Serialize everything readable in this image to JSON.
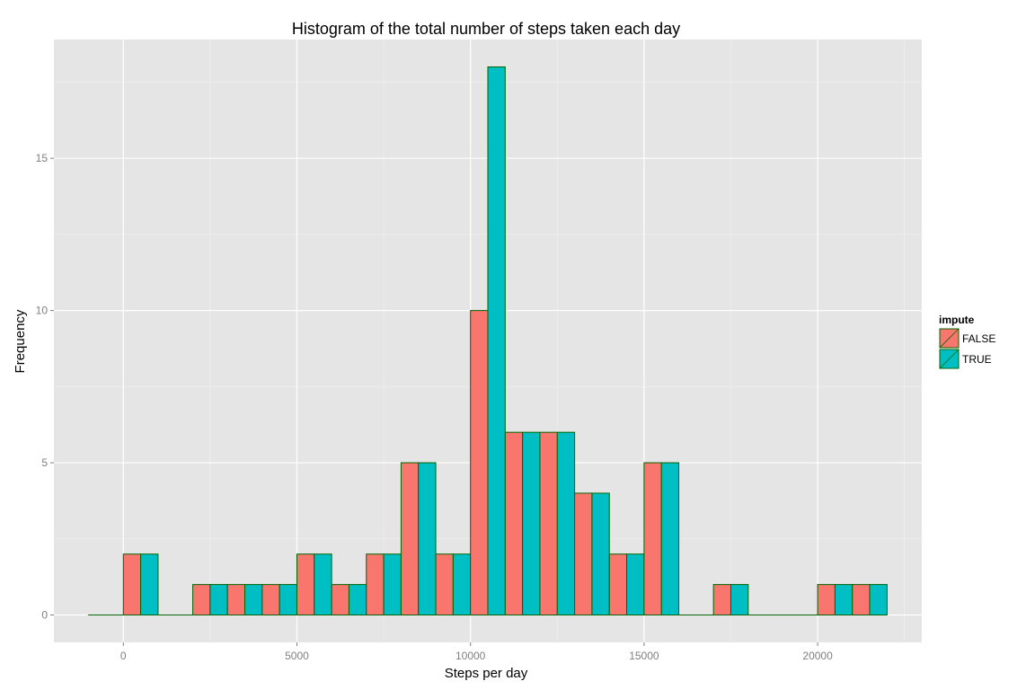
{
  "chart_data": {
    "type": "bar",
    "title": "Histogram of the total number of steps taken each day",
    "xlabel": "Steps per day",
    "ylabel": "Frequency",
    "xlim": [
      -2000,
      23000
    ],
    "ylim": [
      -0.9,
      18.9
    ],
    "xticks": [
      0,
      5000,
      10000,
      15000,
      20000
    ],
    "xtick_labels": [
      "0",
      "5000",
      "10000",
      "15000",
      "20000"
    ],
    "yticks": [
      0,
      5,
      10,
      15
    ],
    "ytick_labels": [
      "0",
      "5",
      "10",
      "15"
    ],
    "grid": true,
    "bin_width": 1000,
    "bin_starts": [
      -1000,
      0,
      1000,
      2000,
      3000,
      4000,
      5000,
      6000,
      7000,
      8000,
      9000,
      10000,
      11000,
      12000,
      13000,
      14000,
      15000,
      16000,
      17000,
      18000,
      19000,
      20000,
      21000
    ],
    "series": [
      {
        "name": "FALSE",
        "color": "#F8766D",
        "values": [
          0,
          2,
          0,
          1,
          1,
          1,
          2,
          1,
          2,
          5,
          2,
          10,
          6,
          6,
          4,
          2,
          5,
          0,
          1,
          0,
          0,
          1,
          1
        ]
      },
      {
        "name": "TRUE",
        "color": "#00BFC4",
        "values": [
          0,
          2,
          0,
          1,
          1,
          1,
          2,
          1,
          2,
          5,
          2,
          18,
          6,
          6,
          4,
          2,
          5,
          0,
          1,
          0,
          0,
          1,
          1
        ]
      }
    ],
    "bar_outline_color": "#006400",
    "legend": {
      "title": "impute",
      "position": "right"
    }
  }
}
